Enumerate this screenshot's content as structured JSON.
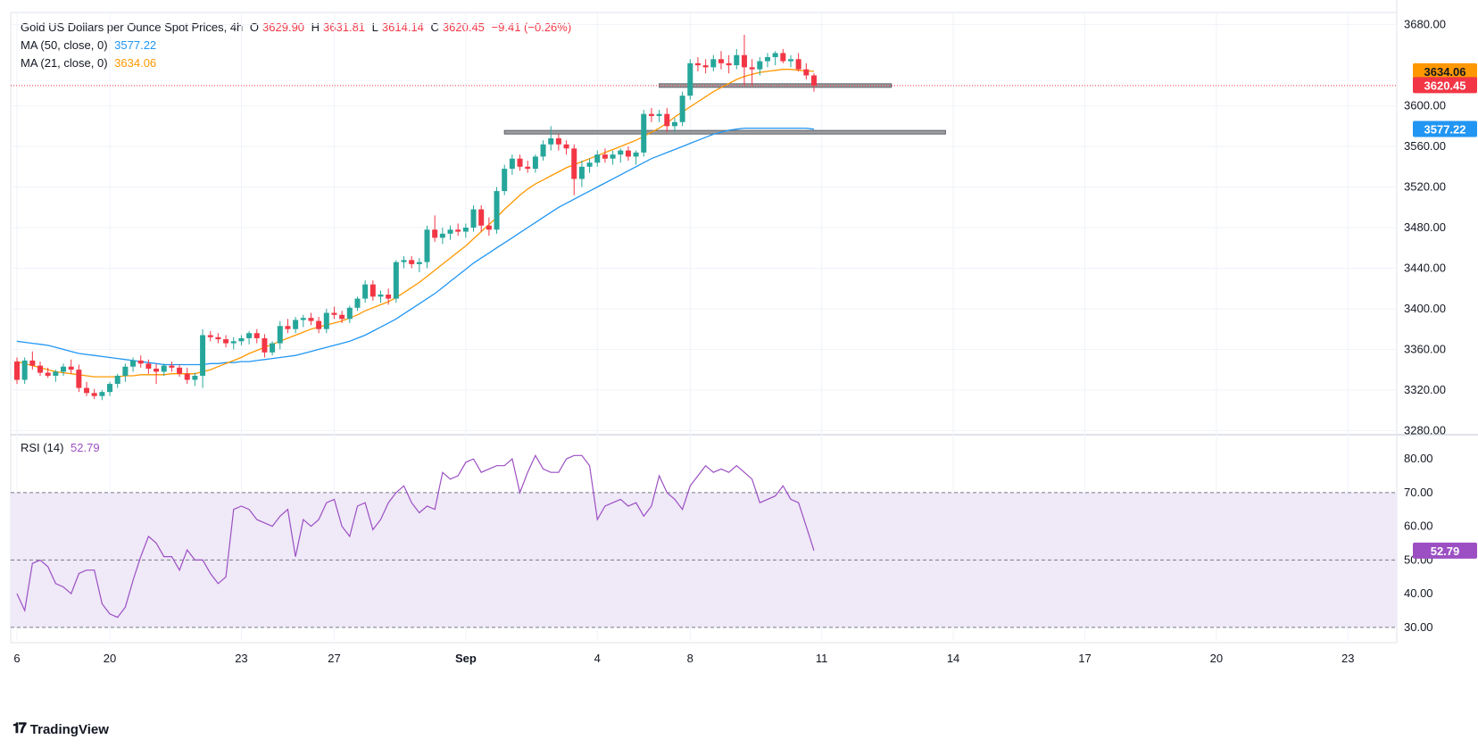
{
  "header": {
    "symbol_title": "Gold US Dollars per Ounce Spot Prices, 4h",
    "o_label": "O",
    "o_value": "3629.90",
    "h_label": "H",
    "h_value": "3631.81",
    "l_label": "L",
    "l_value": "3614.14",
    "c_label": "C",
    "c_value": "3620.45",
    "change": "−9.41 (−0.26%)"
  },
  "indicators": {
    "ma50_label": "MA (50, close, 0)",
    "ma50_value": "3577.22",
    "ma21_label": "MA (21, close, 0)",
    "ma21_value": "3634.06",
    "rsi_label": "RSI (14)",
    "rsi_value": "52.79"
  },
  "branding": {
    "logo_text": "TradingView",
    "logo_icon": "tradingview-logo-icon"
  },
  "colors": {
    "up": "#26a69a",
    "down": "#f23645",
    "ma50": "#2196f3",
    "ma21": "#ff9800",
    "rsi": "#9c4fc3",
    "rsi_band": "#efe9f8",
    "grid": "#f0f3fa",
    "last_price": "#f23645"
  },
  "chart_data": [
    {
      "type": "candlestick",
      "title": "Gold US Dollars per Ounce Spot Prices, 4h",
      "ylim": [
        3268,
        3692
      ],
      "y_ticks": [
        "3680.00",
        "3600.00",
        "3560.00",
        "3520.00",
        "3480.00",
        "3440.00",
        "3400.00",
        "3360.00",
        "3320.00",
        "3280.00"
      ],
      "x_ticks": [
        "6",
        "20",
        "23",
        "27",
        "Sep",
        "4",
        "8",
        "11",
        "14",
        "17",
        "20",
        "23"
      ],
      "price_labels": [
        {
          "text": "3634.06",
          "series": "MA 21",
          "value": 3634.06
        },
        {
          "text": "3620.45",
          "series": "Last",
          "value": 3620.45
        },
        {
          "text": "3577.22",
          "series": "MA 50",
          "value": 3577.22
        }
      ],
      "horizontal_levels": [
        {
          "value": 3620,
          "x_start": "Sep 8",
          "x_end": "Sep 12"
        },
        {
          "value": 3574,
          "x_start": "Sep 2",
          "x_end": "Sep 14"
        }
      ],
      "candles": [
        [
          3348,
          3352,
          3326,
          3330
        ],
        [
          3330,
          3352,
          3326,
          3349
        ],
        [
          3349,
          3358,
          3340,
          3344
        ],
        [
          3344,
          3348,
          3334,
          3337
        ],
        [
          3337,
          3342,
          3332,
          3334
        ],
        [
          3334,
          3340,
          3328,
          3338
        ],
        [
          3338,
          3346,
          3334,
          3343
        ],
        [
          3343,
          3350,
          3336,
          3340
        ],
        [
          3340,
          3345,
          3318,
          3322
        ],
        [
          3322,
          3328,
          3314,
          3317
        ],
        [
          3317,
          3321,
          3311,
          3314
        ],
        [
          3314,
          3320,
          3310,
          3318
        ],
        [
          3318,
          3328,
          3314,
          3326
        ],
        [
          3326,
          3336,
          3322,
          3334
        ],
        [
          3334,
          3346,
          3328,
          3343
        ],
        [
          3343,
          3352,
          3338,
          3349
        ],
        [
          3349,
          3354,
          3342,
          3346
        ],
        [
          3346,
          3350,
          3336,
          3341
        ],
        [
          3341,
          3346,
          3326,
          3338
        ],
        [
          3338,
          3346,
          3334,
          3344
        ],
        [
          3344,
          3348,
          3338,
          3342
        ],
        [
          3342,
          3345,
          3333,
          3336
        ],
        [
          3336,
          3342,
          3326,
          3330
        ],
        [
          3330,
          3337,
          3324,
          3334
        ],
        [
          3334,
          3380,
          3322,
          3374
        ],
        [
          3374,
          3378,
          3368,
          3372
        ],
        [
          3372,
          3376,
          3366,
          3370
        ],
        [
          3370,
          3374,
          3362,
          3366
        ],
        [
          3366,
          3372,
          3360,
          3368
        ],
        [
          3368,
          3374,
          3364,
          3371
        ],
        [
          3371,
          3378,
          3365,
          3376
        ],
        [
          3376,
          3380,
          3366,
          3371
        ],
        [
          3371,
          3375,
          3352,
          3357
        ],
        [
          3357,
          3368,
          3354,
          3366
        ],
        [
          3366,
          3388,
          3360,
          3383
        ],
        [
          3383,
          3390,
          3376,
          3380
        ],
        [
          3380,
          3392,
          3376,
          3389
        ],
        [
          3389,
          3394,
          3382,
          3391
        ],
        [
          3391,
          3396,
          3384,
          3388
        ],
        [
          3388,
          3392,
          3376,
          3380
        ],
        [
          3380,
          3400,
          3376,
          3396
        ],
        [
          3396,
          3402,
          3390,
          3394
        ],
        [
          3394,
          3398,
          3386,
          3390
        ],
        [
          3390,
          3403,
          3386,
          3401
        ],
        [
          3401,
          3412,
          3398,
          3410
        ],
        [
          3410,
          3428,
          3406,
          3424
        ],
        [
          3424,
          3428,
          3408,
          3412
        ],
        [
          3412,
          3418,
          3406,
          3414
        ],
        [
          3414,
          3420,
          3404,
          3410
        ],
        [
          3410,
          3448,
          3406,
          3446
        ],
        [
          3446,
          3452,
          3440,
          3448
        ],
        [
          3448,
          3452,
          3440,
          3444
        ],
        [
          3444,
          3450,
          3436,
          3446
        ],
        [
          3446,
          3482,
          3440,
          3478
        ],
        [
          3478,
          3492,
          3466,
          3470
        ],
        [
          3470,
          3480,
          3464,
          3474
        ],
        [
          3474,
          3482,
          3468,
          3478
        ],
        [
          3478,
          3484,
          3472,
          3476
        ],
        [
          3476,
          3484,
          3470,
          3480
        ],
        [
          3480,
          3502,
          3476,
          3498
        ],
        [
          3498,
          3502,
          3476,
          3482
        ],
        [
          3482,
          3490,
          3472,
          3478
        ],
        [
          3478,
          3520,
          3474,
          3516
        ],
        [
          3516,
          3542,
          3512,
          3538
        ],
        [
          3538,
          3552,
          3532,
          3548
        ],
        [
          3548,
          3552,
          3536,
          3540
        ],
        [
          3540,
          3546,
          3534,
          3538
        ],
        [
          3538,
          3552,
          3534,
          3550
        ],
        [
          3550,
          3566,
          3546,
          3562
        ],
        [
          3562,
          3580,
          3556,
          3568
        ],
        [
          3568,
          3572,
          3556,
          3562
        ],
        [
          3562,
          3566,
          3552,
          3558
        ],
        [
          3558,
          3562,
          3512,
          3528
        ],
        [
          3528,
          3546,
          3520,
          3540
        ],
        [
          3540,
          3548,
          3534,
          3544
        ],
        [
          3544,
          3556,
          3540,
          3552
        ],
        [
          3552,
          3558,
          3544,
          3548
        ],
        [
          3548,
          3556,
          3542,
          3552
        ],
        [
          3552,
          3558,
          3544,
          3556
        ],
        [
          3556,
          3560,
          3546,
          3550
        ],
        [
          3550,
          3556,
          3542,
          3554
        ],
        [
          3554,
          3596,
          3550,
          3592
        ],
        [
          3592,
          3598,
          3584,
          3590
        ],
        [
          3590,
          3596,
          3584,
          3592
        ],
        [
          3592,
          3598,
          3574,
          3580
        ],
        [
          3580,
          3588,
          3574,
          3584
        ],
        [
          3584,
          3614,
          3580,
          3610
        ],
        [
          3610,
          3646,
          3606,
          3642
        ],
        [
          3642,
          3648,
          3634,
          3640
        ],
        [
          3640,
          3646,
          3632,
          3638
        ],
        [
          3638,
          3650,
          3634,
          3646
        ],
        [
          3646,
          3654,
          3636,
          3642
        ],
        [
          3642,
          3650,
          3632,
          3640
        ],
        [
          3640,
          3656,
          3636,
          3650
        ],
        [
          3650,
          3670,
          3620,
          3638
        ],
        [
          3638,
          3646,
          3620,
          3636
        ],
        [
          3636,
          3648,
          3630,
          3644
        ],
        [
          3644,
          3652,
          3638,
          3648
        ],
        [
          3648,
          3654,
          3640,
          3652
        ],
        [
          3652,
          3656,
          3642,
          3644
        ],
        [
          3644,
          3650,
          3638,
          3646
        ],
        [
          3646,
          3652,
          3634,
          3636
        ],
        [
          3636,
          3642,
          3626,
          3630
        ],
        [
          3630,
          3632,
          3614,
          3620
        ]
      ],
      "series": [
        {
          "name": "MA (50, close, 0)",
          "color": "#2196f3",
          "values": [
            3368,
            3367,
            3366,
            3365,
            3364,
            3362,
            3360,
            3358,
            3356,
            3355,
            3354,
            3353,
            3352,
            3351,
            3350,
            3349,
            3348,
            3347,
            3346,
            3345,
            3345,
            3345,
            3345,
            3345,
            3345,
            3346,
            3346,
            3347,
            3347,
            3348,
            3348,
            3349,
            3350,
            3351,
            3352,
            3353,
            3354,
            3356,
            3358,
            3360,
            3362,
            3364,
            3366,
            3368,
            3371,
            3374,
            3378,
            3382,
            3386,
            3390,
            3395,
            3400,
            3405,
            3410,
            3415,
            3421,
            3427,
            3433,
            3439,
            3445,
            3450,
            3455,
            3460,
            3465,
            3470,
            3475,
            3480,
            3485,
            3490,
            3495,
            3500,
            3504,
            3508,
            3512,
            3516,
            3520,
            3524,
            3528,
            3532,
            3536,
            3540,
            3544,
            3548,
            3551,
            3554,
            3557,
            3560,
            3563,
            3566,
            3569,
            3572,
            3574,
            3576,
            3577,
            3578,
            3578,
            3578,
            3578,
            3578,
            3578,
            3578,
            3578,
            3578,
            3577
          ]
        },
        {
          "name": "MA (21, close, 0)",
          "color": "#ff9800",
          "values": [
            3348,
            3346,
            3344,
            3342,
            3340,
            3338,
            3337,
            3336,
            3335,
            3334,
            3333,
            3333,
            3333,
            3333,
            3334,
            3334,
            3335,
            3335,
            3335,
            3335,
            3336,
            3336,
            3336,
            3336,
            3338,
            3340,
            3343,
            3346,
            3349,
            3352,
            3356,
            3359,
            3362,
            3365,
            3368,
            3371,
            3374,
            3377,
            3380,
            3382,
            3384,
            3386,
            3388,
            3391,
            3394,
            3398,
            3401,
            3404,
            3407,
            3411,
            3416,
            3421,
            3426,
            3432,
            3438,
            3444,
            3450,
            3456,
            3462,
            3469,
            3476,
            3483,
            3490,
            3498,
            3505,
            3512,
            3518,
            3523,
            3527,
            3531,
            3535,
            3539,
            3542,
            3545,
            3548,
            3551,
            3554,
            3557,
            3560,
            3563,
            3566,
            3570,
            3574,
            3578,
            3583,
            3589,
            3594,
            3599,
            3604,
            3609,
            3614,
            3618,
            3622,
            3626,
            3629,
            3631,
            3633,
            3634,
            3635,
            3636,
            3636,
            3635,
            3634.5,
            3634.06
          ]
        }
      ]
    },
    {
      "type": "line",
      "title": "RSI (14)",
      "ylim": [
        26,
        84
      ],
      "y_ticks": [
        "80.00",
        "70.00",
        "60.00",
        "50.00",
        "40.00",
        "30.00"
      ],
      "band": [
        30,
        70
      ],
      "reference_lines": [
        30,
        50,
        70
      ],
      "last_label": "52.79",
      "series": [
        {
          "name": "RSI (14)",
          "color": "#9c4fc3",
          "values": [
            40,
            35,
            49,
            50,
            48,
            43,
            42,
            40,
            46,
            47,
            47,
            37,
            34,
            33,
            36,
            44,
            51,
            57,
            55,
            51,
            51,
            47,
            53,
            50,
            50,
            46,
            43,
            45,
            65,
            66,
            65,
            62,
            61,
            60,
            63,
            65,
            51,
            62,
            60,
            62,
            67,
            68,
            60,
            57,
            66,
            67,
            59,
            62,
            67,
            70,
            72,
            67,
            64,
            66,
            65,
            76,
            74,
            75,
            79,
            80,
            76,
            77,
            78,
            78,
            80,
            70,
            76,
            81,
            77,
            76,
            76,
            80,
            81,
            81,
            78,
            62,
            66,
            67,
            68,
            66,
            67,
            63,
            66,
            75,
            70,
            68,
            65,
            72,
            75,
            78,
            76,
            77,
            76,
            78,
            76,
            74,
            67,
            68,
            69,
            72,
            68,
            67,
            60,
            52.79
          ]
        }
      ]
    }
  ]
}
